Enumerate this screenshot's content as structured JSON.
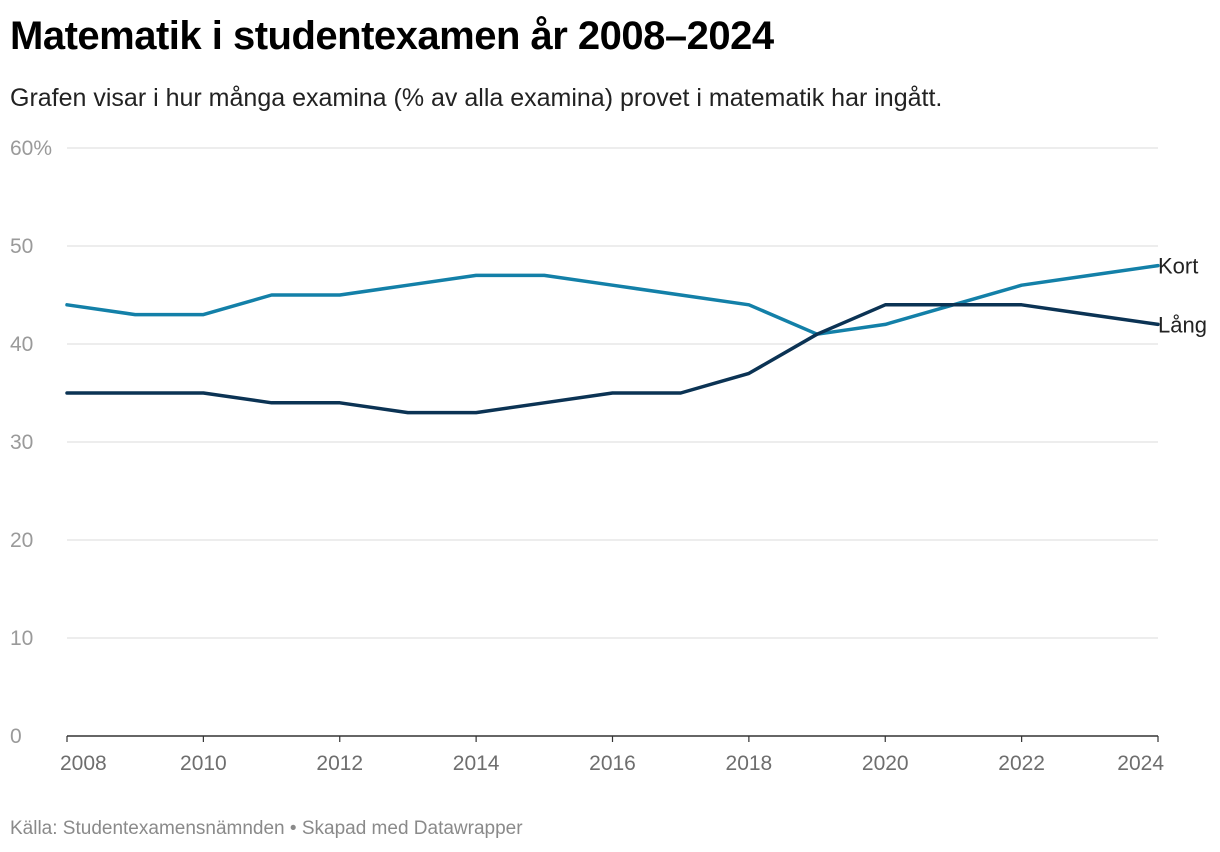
{
  "header": {
    "title": "Matematik i studentexamen år 2008–2024",
    "subtitle": "Grafen visar i hur många examina (% av alla examina) provet i matematik har ingått."
  },
  "footer": {
    "source": "Källa: Studentexamensnämnden • Skapad med Datawrapper"
  },
  "chart_data": {
    "type": "line",
    "title": "Matematik i studentexamen år 2008–2024",
    "subtitle": "Grafen visar i hur många examina (% av alla examina) provet i matematik har ingått.",
    "xlabel": "",
    "ylabel": "",
    "x": [
      2008,
      2009,
      2010,
      2011,
      2012,
      2013,
      2014,
      2015,
      2016,
      2017,
      2018,
      2019,
      2020,
      2021,
      2022,
      2023,
      2024
    ],
    "x_tick_values": [
      2008,
      2010,
      2012,
      2014,
      2016,
      2018,
      2020,
      2022,
      2024
    ],
    "x_tick_labels": [
      "2008",
      "2010",
      "2012",
      "2014",
      "2016",
      "2018",
      "2020",
      "2022",
      "2024"
    ],
    "y_tick_values": [
      0,
      10,
      20,
      30,
      40,
      50,
      60
    ],
    "y_tick_labels": [
      "0",
      "10",
      "20",
      "30",
      "40",
      "50",
      "60%"
    ],
    "xlim": [
      2008,
      2024
    ],
    "ylim": [
      0,
      60
    ],
    "grid": true,
    "legend": "direct labels at right end of lines",
    "series": [
      {
        "name": "Kort",
        "color": "#1380a8",
        "values": [
          44,
          43,
          43,
          45,
          45,
          46,
          47,
          47,
          46,
          45,
          44,
          41,
          42,
          44,
          46,
          47,
          48
        ]
      },
      {
        "name": "Lång",
        "color": "#0b3354",
        "values": [
          35,
          35,
          35,
          34,
          34,
          33,
          33,
          34,
          35,
          35,
          37,
          41,
          44,
          44,
          44,
          43,
          42
        ]
      }
    ]
  }
}
